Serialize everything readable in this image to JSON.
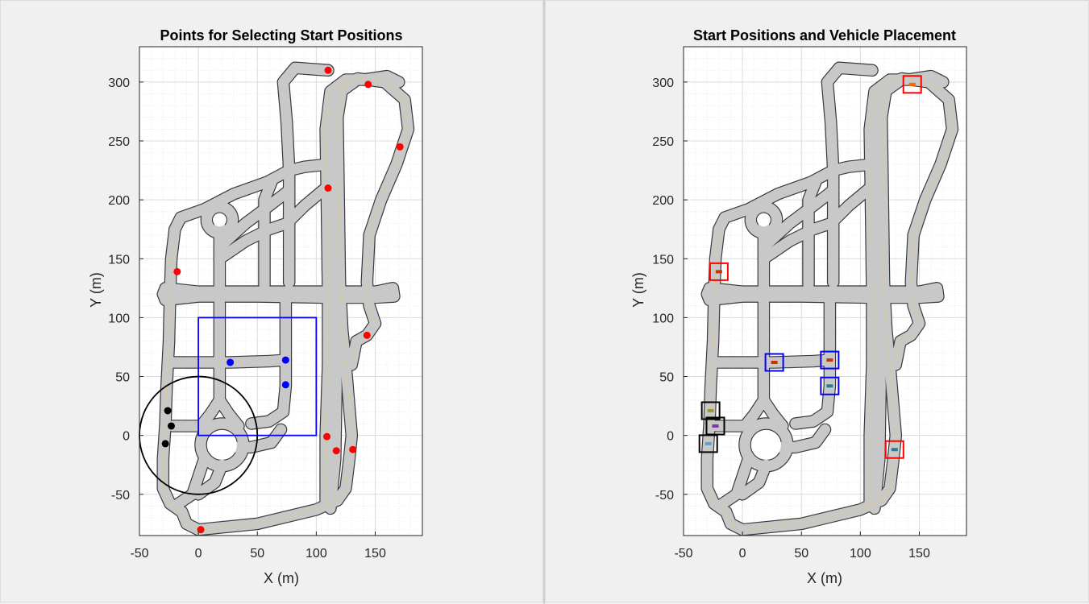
{
  "figure": {
    "background": "#f0f0f0"
  },
  "road_style": {
    "fill": "#c8c8c8",
    "edge": "#3a3a3a",
    "lane": "#e6cf6a"
  },
  "chart_data": [
    {
      "type": "scatter",
      "title": "Points for Selecting Start Positions",
      "xlabel": "X (m)",
      "ylabel": "Y (m)",
      "xlim": [
        -50,
        190
      ],
      "ylim": [
        -85,
        330
      ],
      "xticks": [
        -50,
        0,
        50,
        100,
        150
      ],
      "yticks": [
        -50,
        0,
        50,
        100,
        150,
        200,
        250,
        300
      ],
      "grid": true,
      "minor_grid": true,
      "series": [
        {
          "color": "#ff0000",
          "points": [
            [
              110,
              310
            ],
            [
              144,
              298
            ],
            [
              171,
              245
            ],
            [
              110,
              210
            ],
            [
              -18,
              139
            ],
            [
              143,
              85
            ],
            [
              109,
              -1
            ],
            [
              117,
              -13
            ],
            [
              131,
              -12
            ],
            [
              2,
              -80
            ]
          ]
        },
        {
          "color": "#0000ff",
          "points": [
            [
              27,
              62
            ],
            [
              74,
              64
            ],
            [
              74,
              43
            ]
          ]
        },
        {
          "color": "#000000",
          "points": [
            [
              -26,
              21
            ],
            [
              -23,
              8
            ],
            [
              -28,
              -7
            ]
          ]
        }
      ],
      "regions": [
        {
          "shape": "rectangle",
          "color": "#0000ff",
          "x": [
            0,
            100
          ],
          "y": [
            0,
            100
          ]
        },
        {
          "shape": "circle",
          "color": "#000000",
          "center": [
            0,
            0
          ],
          "radius": 50
        }
      ]
    },
    {
      "type": "scatter",
      "title": "Start Positions and Vehicle Placement",
      "xlabel": "X (m)",
      "ylabel": "Y (m)",
      "xlim": [
        -50,
        190
      ],
      "ylim": [
        -85,
        330
      ],
      "xticks": [
        -50,
        0,
        50,
        100,
        150
      ],
      "yticks": [
        -50,
        0,
        50,
        100,
        150,
        200,
        250,
        300
      ],
      "grid": true,
      "minor_grid": true,
      "vehicles": [
        {
          "x": 144,
          "y": 298,
          "box_color": "#ff0000",
          "car_color": "#ff6600"
        },
        {
          "x": -20,
          "y": 139,
          "box_color": "#ff0000",
          "car_color": "#cc3300"
        },
        {
          "x": 129,
          "y": -12,
          "box_color": "#ff0000",
          "car_color": "#2b7a9e"
        },
        {
          "x": 27,
          "y": 62,
          "box_color": "#0000ff",
          "car_color": "#cc3300"
        },
        {
          "x": 74,
          "y": 64,
          "box_color": "#0000ff",
          "car_color": "#cc3300"
        },
        {
          "x": 74,
          "y": 42,
          "box_color": "#0000ff",
          "car_color": "#2b7a9e"
        },
        {
          "x": -27,
          "y": 21,
          "box_color": "#000000",
          "car_color": "#999933"
        },
        {
          "x": -23,
          "y": 8,
          "box_color": "#000000",
          "car_color": "#7a3aa0"
        },
        {
          "x": -29,
          "y": -7,
          "box_color": "#000000",
          "car_color": "#5aa0d8"
        }
      ]
    }
  ]
}
